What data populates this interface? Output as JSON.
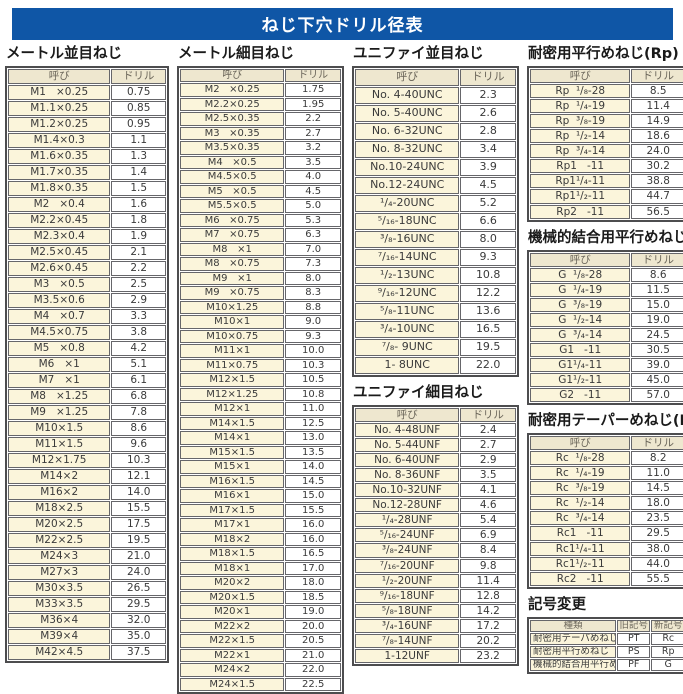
{
  "title": "ねじ下穴ドリル径表",
  "sections": {
    "metric_coarse": {
      "title": "メートル並目ねじ",
      "headers": [
        "呼び",
        "ドリル"
      ],
      "rows": [
        [
          "M1   ×0.25",
          "0.75"
        ],
        [
          "M1.1×0.25",
          "0.85"
        ],
        [
          "M1.2×0.25",
          "0.95"
        ],
        [
          "M1.4×0.3",
          "1.1"
        ],
        [
          "M1.6×0.35",
          "1.3"
        ],
        [
          "M1.7×0.35",
          "1.4"
        ],
        [
          "M1.8×0.35",
          "1.5"
        ],
        [
          "M2   ×0.4",
          "1.6"
        ],
        [
          "M2.2×0.45",
          "1.8"
        ],
        [
          "M2.3×0.4",
          "1.9"
        ],
        [
          "M2.5×0.45",
          "2.1"
        ],
        [
          "M2.6×0.45",
          "2.2"
        ],
        [
          "M3   ×0.5",
          "2.5"
        ],
        [
          "M3.5×0.6",
          "2.9"
        ],
        [
          "M4   ×0.7",
          "3.3"
        ],
        [
          "M4.5×0.75",
          "3.8"
        ],
        [
          "M5   ×0.8",
          "4.2"
        ],
        [
          "M6   ×1",
          "5.1"
        ],
        [
          "M7   ×1",
          "6.1"
        ],
        [
          "M8   ×1.25",
          "6.8"
        ],
        [
          "M9   ×1.25",
          "7.8"
        ],
        [
          "M10×1.5",
          "8.6"
        ],
        [
          "M11×1.5",
          "9.6"
        ],
        [
          "M12×1.75",
          "10.3"
        ],
        [
          "M14×2",
          "12.1"
        ],
        [
          "M16×2",
          "14.0"
        ],
        [
          "M18×2.5",
          "15.5"
        ],
        [
          "M20×2.5",
          "17.5"
        ],
        [
          "M22×2.5",
          "19.5"
        ],
        [
          "M24×3",
          "21.0"
        ],
        [
          "M27×3",
          "24.0"
        ],
        [
          "M30×3.5",
          "26.5"
        ],
        [
          "M33×3.5",
          "29.5"
        ],
        [
          "M36×4",
          "32.0"
        ],
        [
          "M39×4",
          "35.0"
        ],
        [
          "M42×4.5",
          "37.5"
        ]
      ]
    },
    "metric_fine": {
      "title": "メートル細目ねじ",
      "headers": [
        "呼び",
        "ドリル"
      ],
      "rows": [
        [
          "M2   ×0.25",
          "1.75"
        ],
        [
          "M2.2×0.25",
          "1.95"
        ],
        [
          "M2.5×0.35",
          "2.2"
        ],
        [
          "M3   ×0.35",
          "2.7"
        ],
        [
          "M3.5×0.35",
          "3.2"
        ],
        [
          "M4   ×0.5",
          "3.5"
        ],
        [
          "M4.5×0.5",
          "4.0"
        ],
        [
          "M5   ×0.5",
          "4.5"
        ],
        [
          "M5.5×0.5",
          "5.0"
        ],
        [
          "M6   ×0.75",
          "5.3"
        ],
        [
          "M7   ×0.75",
          "6.3"
        ],
        [
          "M8   ×1",
          "7.0"
        ],
        [
          "M8   ×0.75",
          "7.3"
        ],
        [
          "M9   ×1",
          "8.0"
        ],
        [
          "M9   ×0.75",
          "8.3"
        ],
        [
          "M10×1.25",
          "8.8"
        ],
        [
          "M10×1",
          "9.0"
        ],
        [
          "M10×0.75",
          "9.3"
        ],
        [
          "M11×1",
          "10.0"
        ],
        [
          "M11×0.75",
          "10.3"
        ],
        [
          "M12×1.5",
          "10.5"
        ],
        [
          "M12×1.25",
          "10.8"
        ],
        [
          "M12×1",
          "11.0"
        ],
        [
          "M14×1.5",
          "12.5"
        ],
        [
          "M14×1",
          "13.0"
        ],
        [
          "M15×1.5",
          "13.5"
        ],
        [
          "M15×1",
          "14.0"
        ],
        [
          "M16×1.5",
          "14.5"
        ],
        [
          "M16×1",
          "15.0"
        ],
        [
          "M17×1.5",
          "15.5"
        ],
        [
          "M17×1",
          "16.0"
        ],
        [
          "M18×2",
          "16.0"
        ],
        [
          "M18×1.5",
          "16.5"
        ],
        [
          "M18×1",
          "17.0"
        ],
        [
          "M20×2",
          "18.0"
        ],
        [
          "M20×1.5",
          "18.5"
        ],
        [
          "M20×1",
          "19.0"
        ],
        [
          "M22×2",
          "20.0"
        ],
        [
          "M22×1.5",
          "20.5"
        ],
        [
          "M22×1",
          "21.0"
        ],
        [
          "M24×2",
          "22.0"
        ],
        [
          "M24×1.5",
          "22.5"
        ]
      ]
    },
    "unc": {
      "title": "ユニファイ並目ねじ",
      "headers": [
        "呼び",
        "ドリル"
      ],
      "rows": [
        [
          "No. 4-40UNC",
          "2.3"
        ],
        [
          "No. 5-40UNC",
          "2.6"
        ],
        [
          "No. 6-32UNC",
          "2.8"
        ],
        [
          "No. 8-32UNC",
          "3.4"
        ],
        [
          "No.10-24UNC",
          "3.9"
        ],
        [
          "No.12-24UNC",
          "4.5"
        ],
        [
          "¹/₄-20UNC",
          "5.2"
        ],
        [
          "⁵/₁₆-18UNC",
          "6.6"
        ],
        [
          "³/₈-16UNC",
          "8.0"
        ],
        [
          "⁷/₁₆-14UNC",
          "9.3"
        ],
        [
          "¹/₂-13UNC",
          "10.8"
        ],
        [
          "⁹/₁₆-12UNC",
          "12.2"
        ],
        [
          "⁵/₈-11UNC",
          "13.6"
        ],
        [
          "³/₄-10UNC",
          "16.5"
        ],
        [
          "⁷/₈- 9UNC",
          "19.5"
        ],
        [
          "1- 8UNC",
          "22.0"
        ]
      ]
    },
    "unf": {
      "title": "ユニファイ細目ねじ",
      "headers": [
        "呼び",
        "ドリル"
      ],
      "rows": [
        [
          "No. 4-48UNF",
          "2.4"
        ],
        [
          "No. 5-44UNF",
          "2.7"
        ],
        [
          "No. 6-40UNF",
          "2.9"
        ],
        [
          "No. 8-36UNF",
          "3.5"
        ],
        [
          "No.10-32UNF",
          "4.1"
        ],
        [
          "No.12-28UNF",
          "4.6"
        ],
        [
          "¹/₄-28UNF",
          "5.4"
        ],
        [
          "⁵/₁₆-24UNF",
          "6.9"
        ],
        [
          "³/₈-24UNF",
          "8.4"
        ],
        [
          "⁷/₁₆-20UNF",
          "9.8"
        ],
        [
          "¹/₂-20UNF",
          "11.4"
        ],
        [
          "⁹/₁₆-18UNF",
          "12.8"
        ],
        [
          "⁵/₈-18UNF",
          "14.2"
        ],
        [
          "³/₄-16UNF",
          "17.2"
        ],
        [
          "⁷/₈-14UNF",
          "20.2"
        ],
        [
          "1-12UNF",
          "23.2"
        ]
      ]
    },
    "rp": {
      "title": "耐密用平行めねじ(Rp)",
      "headers": [
        "呼び",
        "ドリル"
      ],
      "rows": [
        [
          "Rp  ¹/₈-28",
          "8.5"
        ],
        [
          "Rp  ¹/₄-19",
          "11.4"
        ],
        [
          "Rp  ³/₈-19",
          "14.9"
        ],
        [
          "Rp  ¹/₂-14",
          "18.6"
        ],
        [
          "Rp  ³/₄-14",
          "24.0"
        ],
        [
          "Rp1   -11",
          "30.2"
        ],
        [
          "Rp1¹/₄-11",
          "38.8"
        ],
        [
          "Rp1¹/₂-11",
          "44.7"
        ],
        [
          "Rp2   -11",
          "56.5"
        ]
      ]
    },
    "g": {
      "title": "機械的結合用平行めねじ(G)",
      "headers": [
        "呼び",
        "ドリル"
      ],
      "rows": [
        [
          "G  ¹/₈-28",
          "8.6"
        ],
        [
          "G  ¹/₄-19",
          "11.5"
        ],
        [
          "G  ³/₈-19",
          "15.0"
        ],
        [
          "G  ¹/₂-14",
          "19.0"
        ],
        [
          "G  ³/₄-14",
          "24.5"
        ],
        [
          "G1   -11",
          "30.5"
        ],
        [
          "G1¹/₄-11",
          "39.0"
        ],
        [
          "G1¹/₂-11",
          "45.0"
        ],
        [
          "G2   -11",
          "57.0"
        ]
      ]
    },
    "rc": {
      "title": "耐密用テーパーめねじ(Rc)",
      "headers": [
        "呼び",
        "ドリル"
      ],
      "rows": [
        [
          "Rc  ¹/₈-28",
          "8.2"
        ],
        [
          "Rc  ¹/₄-19",
          "11.0"
        ],
        [
          "Rc  ³/₈-19",
          "14.5"
        ],
        [
          "Rc  ¹/₂-14",
          "18.0"
        ],
        [
          "Rc  ³/₄-14",
          "23.5"
        ],
        [
          "Rc1   -11",
          "29.5"
        ],
        [
          "Rc1¹/₄-11",
          "38.0"
        ],
        [
          "Rc1¹/₂-11",
          "44.0"
        ],
        [
          "Rc2   -11",
          "55.5"
        ]
      ]
    },
    "symbol_change": {
      "title": "記号変更",
      "headers": [
        "種類",
        "旧記号",
        "新記号"
      ],
      "rows": [
        [
          "耐密用テーパめねじ",
          "PT",
          "Rc"
        ],
        [
          "耐密用平行めねじ",
          "PS",
          "Rp"
        ],
        [
          "機械的結合用平行めねじ",
          "PF",
          "G"
        ]
      ]
    }
  },
  "colors": {
    "banner_blue": "#0f56a6",
    "header_cream": "#eee7cf",
    "name_cell_yellow": "#fbf5db",
    "border_gray": "#4d4d4f"
  }
}
